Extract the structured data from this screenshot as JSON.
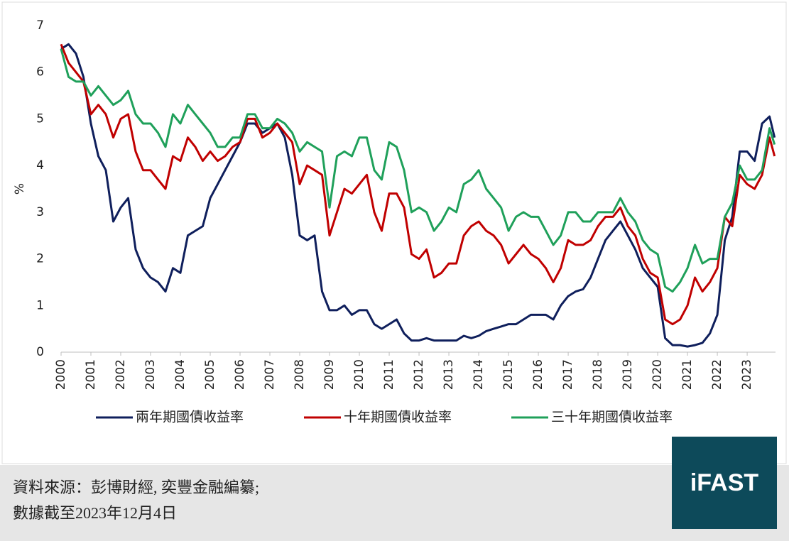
{
  "chart_data": {
    "type": "line",
    "y_label": "%",
    "x": [
      2000,
      2000.25,
      2000.5,
      2000.75,
      2001,
      2001.25,
      2001.5,
      2001.75,
      2002,
      2002.25,
      2002.5,
      2002.75,
      2003,
      2003.25,
      2003.5,
      2003.75,
      2004,
      2004.25,
      2004.5,
      2004.75,
      2005,
      2005.25,
      2005.5,
      2005.75,
      2006,
      2006.25,
      2006.5,
      2006.75,
      2007,
      2007.25,
      2007.5,
      2007.75,
      2008,
      2008.25,
      2008.5,
      2008.75,
      2009,
      2009.25,
      2009.5,
      2009.75,
      2010,
      2010.25,
      2010.5,
      2010.75,
      2011,
      2011.25,
      2011.5,
      2011.75,
      2012,
      2012.25,
      2012.5,
      2012.75,
      2013,
      2013.25,
      2013.5,
      2013.75,
      2014,
      2014.25,
      2014.5,
      2014.75,
      2015,
      2015.25,
      2015.5,
      2015.75,
      2016,
      2016.25,
      2016.5,
      2016.75,
      2017,
      2017.25,
      2017.5,
      2017.75,
      2018,
      2018.25,
      2018.5,
      2018.75,
      2019,
      2019.25,
      2019.5,
      2019.75,
      2020,
      2020.25,
      2020.5,
      2020.75,
      2021,
      2021.25,
      2021.5,
      2021.75,
      2022,
      2022.25,
      2022.5,
      2022.75,
      2023,
      2023.25,
      2023.5,
      2023.75,
      2023.92
    ],
    "series": [
      {
        "name": "兩年期國債收益率",
        "color": "#0f1f5c",
        "values": [
          6.5,
          6.6,
          6.4,
          5.9,
          4.9,
          4.2,
          3.9,
          2.8,
          3.1,
          3.3,
          2.2,
          1.8,
          1.6,
          1.5,
          1.3,
          1.8,
          1.7,
          2.5,
          2.6,
          2.7,
          3.3,
          3.6,
          3.9,
          4.2,
          4.5,
          4.9,
          4.9,
          4.7,
          4.8,
          4.9,
          4.6,
          3.8,
          2.5,
          2.4,
          2.5,
          1.3,
          0.9,
          0.9,
          1.0,
          0.8,
          0.9,
          0.9,
          0.6,
          0.5,
          0.6,
          0.7,
          0.4,
          0.25,
          0.25,
          0.3,
          0.25,
          0.25,
          0.25,
          0.25,
          0.35,
          0.3,
          0.35,
          0.45,
          0.5,
          0.55,
          0.6,
          0.6,
          0.7,
          0.8,
          0.8,
          0.8,
          0.7,
          1.0,
          1.2,
          1.3,
          1.35,
          1.6,
          2.0,
          2.4,
          2.6,
          2.8,
          2.5,
          2.2,
          1.8,
          1.6,
          1.4,
          0.3,
          0.15,
          0.15,
          0.12,
          0.15,
          0.2,
          0.4,
          0.8,
          2.4,
          2.9,
          4.3,
          4.3,
          4.1,
          4.9,
          5.05,
          4.6
        ]
      },
      {
        "name": "十年期國債收益率",
        "color": "#c00000",
        "values": [
          6.6,
          6.2,
          6.0,
          5.8,
          5.1,
          5.3,
          5.1,
          4.6,
          5.0,
          5.1,
          4.3,
          3.9,
          3.9,
          3.7,
          3.5,
          4.2,
          4.1,
          4.6,
          4.4,
          4.1,
          4.3,
          4.1,
          4.2,
          4.4,
          4.5,
          5.0,
          5.0,
          4.6,
          4.7,
          4.9,
          4.7,
          4.5,
          3.6,
          4.0,
          3.9,
          3.8,
          2.5,
          3.0,
          3.5,
          3.4,
          3.6,
          3.8,
          3.0,
          2.6,
          3.4,
          3.4,
          3.1,
          2.1,
          2.0,
          2.2,
          1.6,
          1.7,
          1.9,
          1.9,
          2.5,
          2.7,
          2.8,
          2.6,
          2.5,
          2.3,
          1.9,
          2.1,
          2.3,
          2.1,
          2.0,
          1.8,
          1.5,
          1.8,
          2.4,
          2.3,
          2.3,
          2.4,
          2.7,
          2.9,
          2.9,
          3.1,
          2.7,
          2.5,
          2.0,
          1.7,
          1.6,
          0.7,
          0.6,
          0.7,
          1.0,
          1.6,
          1.3,
          1.5,
          1.8,
          2.9,
          2.7,
          3.8,
          3.6,
          3.5,
          3.8,
          4.6,
          4.2
        ]
      },
      {
        "name": "三十年期國債收益率",
        "color": "#1fa05a",
        "values": [
          6.5,
          5.9,
          5.8,
          5.8,
          5.5,
          5.7,
          5.5,
          5.3,
          5.4,
          5.6,
          5.1,
          4.9,
          4.9,
          4.7,
          4.4,
          5.1,
          4.9,
          5.3,
          5.1,
          4.9,
          4.7,
          4.4,
          4.4,
          4.6,
          4.6,
          5.1,
          5.1,
          4.8,
          4.8,
          5.0,
          4.9,
          4.7,
          4.3,
          4.5,
          4.4,
          4.3,
          3.1,
          4.2,
          4.3,
          4.2,
          4.6,
          4.6,
          3.9,
          3.7,
          4.5,
          4.4,
          3.9,
          3.0,
          3.1,
          3.0,
          2.6,
          2.8,
          3.1,
          3.0,
          3.6,
          3.7,
          3.9,
          3.5,
          3.3,
          3.1,
          2.6,
          2.9,
          3.0,
          2.9,
          2.9,
          2.6,
          2.3,
          2.5,
          3.0,
          3.0,
          2.8,
          2.8,
          3.0,
          3.0,
          3.0,
          3.3,
          3.0,
          2.8,
          2.4,
          2.2,
          2.1,
          1.4,
          1.3,
          1.5,
          1.8,
          2.3,
          1.9,
          2.0,
          2.0,
          2.9,
          3.2,
          4.0,
          3.7,
          3.7,
          3.9,
          4.8,
          4.45
        ]
      }
    ],
    "xlim": [
      2000,
      2023.95
    ],
    "xticks": [
      2000,
      2001,
      2002,
      2003,
      2004,
      2005,
      2006,
      2007,
      2008,
      2009,
      2010,
      2011,
      2012,
      2013,
      2014,
      2015,
      2016,
      2017,
      2018,
      2019,
      2020,
      2021,
      2022,
      2023
    ],
    "ylim": [
      0,
      7
    ],
    "yticks": [
      0,
      1,
      2,
      3,
      4,
      5,
      6,
      7
    ],
    "grid": false
  },
  "footer": {
    "source": [
      "資料來源：彭博財經, 奕豐金融編纂;",
      "數據截至2023年12月4日"
    ],
    "logo": "iFAST"
  }
}
